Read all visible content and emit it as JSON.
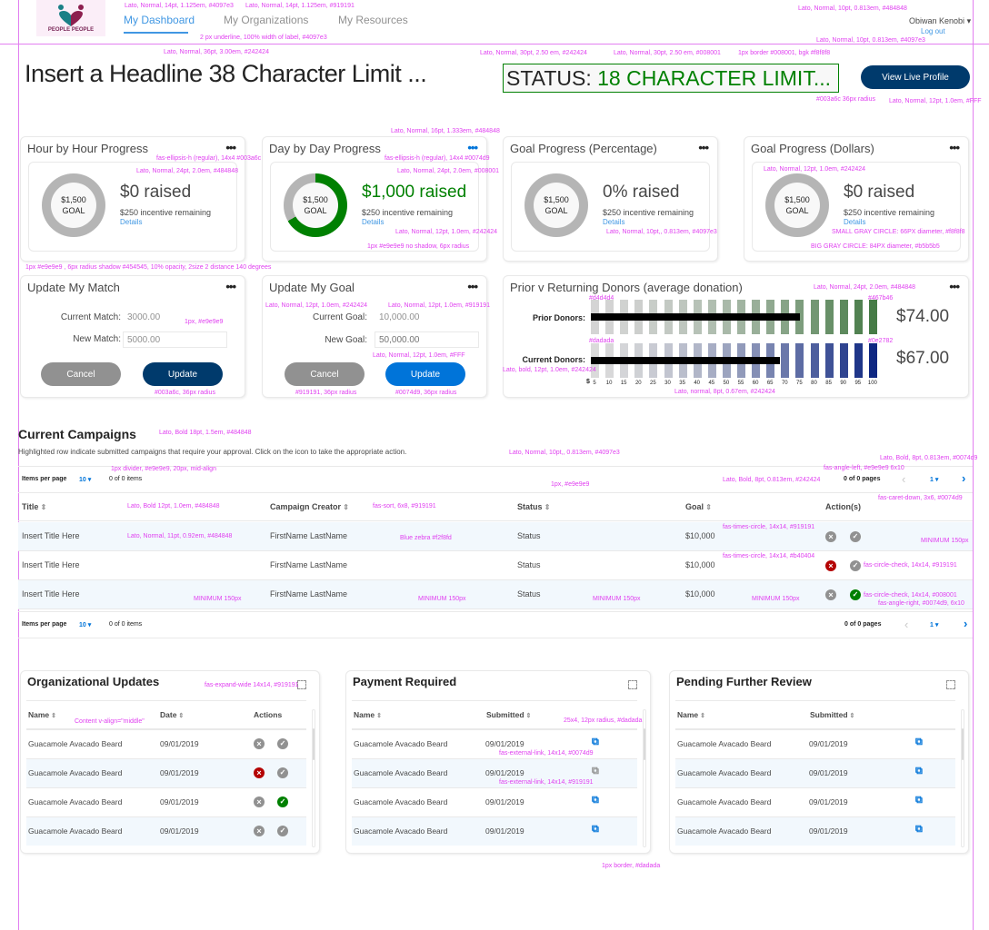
{
  "nav": {
    "logo_text": "PEOPLE PEOPLE",
    "items": [
      "My Dashboard",
      "My Organizations",
      "My Resources"
    ],
    "user": "Obiwan Kenobi",
    "logout": "Log out"
  },
  "header": {
    "headline": "Insert a Headline 38 Character Limit ...",
    "status_label": "STATUS:",
    "status_value": "18 CHARACTER LIMIT...",
    "profile_button": "View Live Profile"
  },
  "progress_cards": [
    {
      "title": "Hour by Hour Progress",
      "goal_amount": "$1,500",
      "goal_label": "GOAL",
      "raised": "$0 raised",
      "incentive": "$250 incentive remaining",
      "details": "Details",
      "progress": 0
    },
    {
      "title": "Day by Day Progress",
      "goal_amount": "$1,500",
      "goal_label": "GOAL",
      "raised": "$1,000 raised",
      "incentive": "$250 incentive remaining",
      "details": "Details",
      "progress": 0.667
    },
    {
      "title": "Goal Progress (Percentage)",
      "goal_amount": "$1,500",
      "goal_label": "GOAL",
      "raised": "0% raised",
      "incentive": "$250 incentive remaining",
      "details": "Details",
      "progress": 0
    },
    {
      "title": "Goal Progress (Dollars)",
      "goal_amount": "$1,500",
      "goal_label": "GOAL",
      "raised": "$0 raised",
      "incentive": "$250 incentive remaining",
      "details": "Details",
      "progress": 0
    }
  ],
  "match_card": {
    "title": "Update My Match",
    "current_label": "Current Match:",
    "current_value": "3000.00",
    "new_label": "New Match:",
    "new_value": "5000.00",
    "cancel": "Cancel",
    "update": "Update"
  },
  "goal_card": {
    "title": "Update My Goal",
    "current_label": "Current Goal:",
    "current_value": "10,000.00",
    "new_label": "New Goal:",
    "new_placeholder": "50,000.00",
    "cancel": "Cancel",
    "update": "Update"
  },
  "chart_data": {
    "type": "bar",
    "title": "Prior v Returning Donors (average donation)",
    "xlabel": "$",
    "x_ticks": [
      "5",
      "10",
      "15",
      "20",
      "25",
      "30",
      "35",
      "40",
      "45",
      "50",
      "55",
      "60",
      "65",
      "70",
      "75",
      "80",
      "85",
      "90",
      "95",
      "100"
    ],
    "xlim": [
      0,
      100
    ],
    "series": [
      {
        "name": "Prior Donors:",
        "value": 74,
        "display": "$74.00",
        "color_from": "#d4d4d4",
        "color_to": "#467b46"
      },
      {
        "name": "Current Donors:",
        "value": 67,
        "display": "$67.00",
        "color_from": "#dadada",
        "color_to": "#0e2782"
      }
    ]
  },
  "campaigns": {
    "title": "Current Campaigns",
    "subtitle": "Highlighted row indicate submitted campaigns that require your approval. Click on the icon to take the appropriate action.",
    "items_per_page_label": "Items per page",
    "items_per_page": "10",
    "items_count": "0 of 0 items",
    "pages": "0 of 0 pages",
    "page": "1",
    "columns": [
      "Title",
      "Campaign Creator",
      "Status",
      "Goal",
      "Action(s)"
    ],
    "rows": [
      {
        "title": "Insert Title Here",
        "creator": "FirstName LastName",
        "status": "Status",
        "goal": "$10,000",
        "reject": "gray",
        "approve": "gray"
      },
      {
        "title": "Insert Title Here",
        "creator": "FirstName LastName",
        "status": "Status",
        "goal": "$10,000",
        "reject": "red",
        "approve": "gray"
      },
      {
        "title": "Insert Title Here",
        "creator": "FirstName LastName",
        "status": "Status",
        "goal": "$10,000",
        "reject": "gray",
        "approve": "green"
      }
    ]
  },
  "panels": [
    {
      "title": "Organizational Updates",
      "columns": [
        "Name",
        "Date",
        "Actions"
      ],
      "rows": [
        {
          "name": "Guacamole Avacado Beard",
          "date": "09/01/2019",
          "reject": "gray",
          "approve": "gray"
        },
        {
          "name": "Guacamole Avacado Beard",
          "date": "09/01/2019",
          "reject": "red",
          "approve": "gray"
        },
        {
          "name": "Guacamole Avacado Beard",
          "date": "09/01/2019",
          "reject": "gray",
          "approve": "green"
        },
        {
          "name": "Guacamole Avacado Beard",
          "date": "09/01/2019",
          "reject": "gray",
          "approve": "gray"
        }
      ]
    },
    {
      "title": "Payment Required",
      "columns": [
        "Name",
        "Submitted"
      ],
      "rows": [
        {
          "name": "Guacamole Avacado Beard",
          "date": "09/01/2019",
          "link": "blue"
        },
        {
          "name": "Guacamole Avacado Beard",
          "date": "09/01/2019",
          "link": "gray"
        },
        {
          "name": "Guacamole Avacado Beard",
          "date": "09/01/2019",
          "link": "blue"
        },
        {
          "name": "Guacamole Avacado Beard",
          "date": "09/01/2019",
          "link": "blue"
        }
      ]
    },
    {
      "title": "Pending Further Review",
      "columns": [
        "Name",
        "Submitted"
      ],
      "rows": [
        {
          "name": "Guacamole Avacado Beard",
          "date": "09/01/2019",
          "link": "blue"
        },
        {
          "name": "Guacamole Avacado Beard",
          "date": "09/01/2019",
          "link": "blue"
        },
        {
          "name": "Guacamole Avacado Beard",
          "date": "09/01/2019",
          "link": "blue"
        },
        {
          "name": "Guacamole Avacado Beard",
          "date": "09/01/2019",
          "link": "blue"
        }
      ]
    }
  ],
  "colors": {
    "primary": "#003a6c",
    "accent": "#0074d9",
    "link": "#4097e3",
    "success": "#008001",
    "danger": "#b40404",
    "muted": "#919191",
    "zebra": "#f2f8fd"
  },
  "annotations": [
    "Lato, Normal, 14pt, 1.125em, #4097e3",
    "Lato, Normal, 14pt, 1.125em, #919191",
    "2 px underline, 100% width of label, #4097e3",
    "Lato, Normal, 36pt, 3.00em, #242424",
    "Lato, Normal, 30pt, 2.50 em, #242424",
    "Lato, Normal, 30pt, 2.50 em, #008001",
    "1px border #008001, bgk #f8f8f8",
    "Lato, Normal, 10pt, 0.813em, #484848",
    "Lato, Normal, 10pt, 0.813em, #4097e3",
    "#003a6c 36px radius",
    "Lato, Normal, 12pt, 1.0em, #FFF",
    "fas-ellipsis-h (regular), 14x4 #003a6c",
    "Lato, Normal, 16pt, 1.333em, #484848",
    "fas-ellipsis-h (regular), 14x4 #0074d9",
    "Lato, Normal, 24pt, 2.0em, #484848",
    "Lato, Normal, 24pt, 2.0em, #008001",
    "Lato, Normal, 12pt, 1.0em, #242424",
    "1px #e9e9e9  no shadow, 6px radius",
    "1px #e9e9e9 , 6px radius  shadow #454545, 10% opacity, 2size 2 distance 140 degrees",
    "Lato, Normal, 10pt,, 0.813em, #4097e3",
    "Lato, Normal, 12pt, 1.0em, #242424",
    "SMALL GRAY CIRCLE: 66PX diameter, #f8f8f8",
    "BIG GRAY CIRCLE: 84PX diameter, #b5b5b5",
    "Lato, Normal, 12pt, 1.0em, #242424",
    "Lato, Normal, 12pt, 1.0em, #919191",
    "1px, #e9e9e9",
    "Lato, Normal, 12pt, 1.0em, #FFF",
    "#003a6c,  36px radius",
    "#919191,  36px radius",
    "#0074d9,  36px radius",
    "#d4d4d4",
    "#467b46",
    "#dadada",
    "#0e2782",
    "Lato, Normal, 24pt, 2.0em, #484848",
    "Lato, bold, 12pt, 1.0em, #242424",
    "Lato, normal, 8pt,  0.67em, #242424",
    "Lato, Bold 18pt, 1.5em, #484848",
    "Lato, Normal, 10pt,, 0.813em, #4097e3",
    "1px divider, #e9e9e9, 20px, mid-align",
    "1px, #e9e9e9",
    "Lato, Bold, 8pt, 0.813em, #0074d9",
    "fas-angle-left, #e9e9e9 6x10",
    "Lato, Bold, 8pt, 0.813em, #242424",
    "fas-caret-down, 3x6, #0074d9",
    "Lato, Bold 12pt, 1.0em, #484848",
    "fas-sort, 6x8, #919191",
    "Lato, Normal, 11pt, 0.92em, #484848",
    "Blue zebra  #f2f8fd",
    "fas-times-circle, 14x14, #919191",
    "fas-times-circle, 14x14, #b40404",
    "fas-circle-check, 14x14, #919191",
    "fas-circle-check, 14x14, #008001",
    "fas-angle-right, #0074d9,  6x10",
    "fas-expand-wide 14x14, #919191",
    "Content v-align=\"middle\"",
    "25x4, 12px radius, #dadada",
    "fas-external-link, 14x14, #0074d9",
    "fas-external-link, 14x14, #919191",
    "1px border, #dadada",
    "MINIMUM 150px",
    "MINIMUM 150px",
    "MINIMUM 150px",
    "MINIMUM 150px",
    "MINIMUM 150px"
  ]
}
